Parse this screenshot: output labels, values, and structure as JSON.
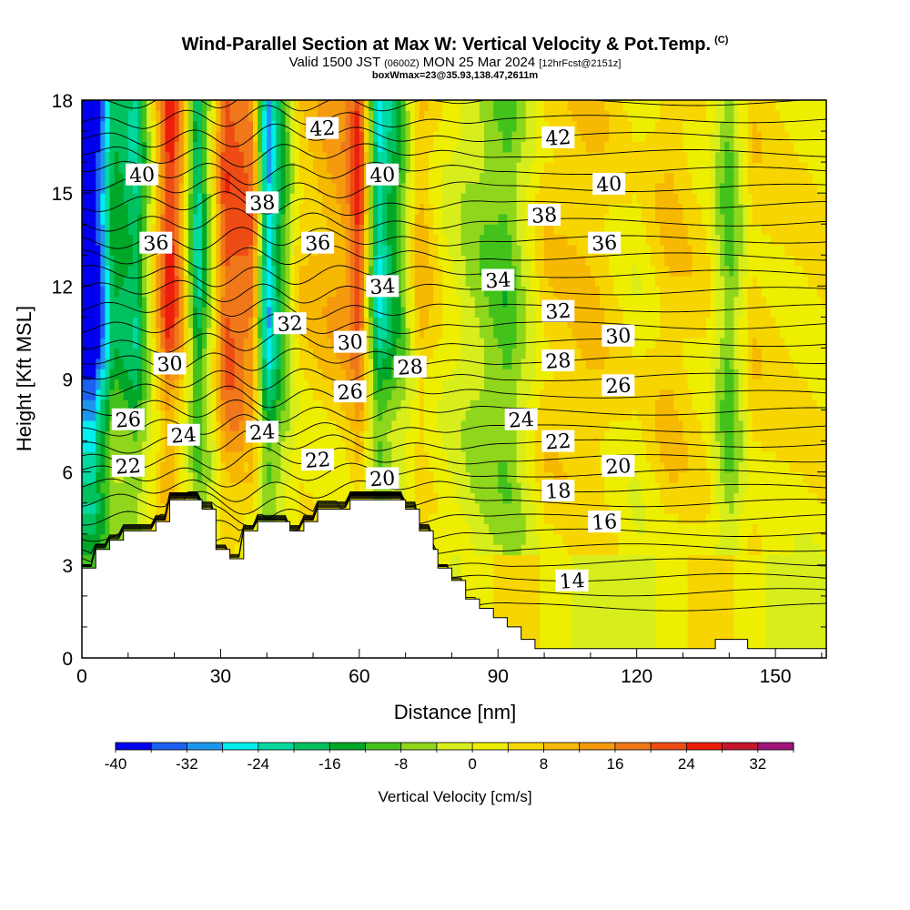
{
  "header": {
    "title": "Wind-Parallel Section at Max W: Vertical Velocity & Pot.Temp.",
    "copyright": "(C)",
    "valid_prefix": "Valid 1500 JST",
    "valid_utc": "(0600Z)",
    "valid_date": "MON 25 Mar 2024",
    "forecast": "[12hrFcst@2151z]",
    "box_info": "boxWmax=23@35.93,138.47,2611m"
  },
  "chart_data": {
    "type": "heatmap",
    "title": "Wind-Parallel Section at Max W: Vertical Velocity & Pot.Temp.",
    "xlabel": "Distance [nm]",
    "ylabel": "Height [Kft MSL]",
    "xlim": [
      0,
      161
    ],
    "ylim": [
      0,
      18
    ],
    "x_ticks": [
      0,
      30,
      60,
      90,
      120,
      150
    ],
    "y_ticks": [
      0,
      3,
      6,
      9,
      12,
      15,
      18
    ],
    "colorbar": {
      "label": "Vertical Velocity [cm/s]",
      "ticks": [
        -40,
        -32,
        -24,
        -16,
        -8,
        0,
        8,
        16,
        24,
        32
      ],
      "range": [
        -40,
        36
      ],
      "step": 4,
      "colors": [
        "#0000ee",
        "#1c60f2",
        "#1e96ee",
        "#00eeee",
        "#00d9a0",
        "#00c160",
        "#00a728",
        "#44c21c",
        "#8fd61c",
        "#d7ee1c",
        "#eeee00",
        "#f6d500",
        "#f6b800",
        "#f59a0e",
        "#f0781a",
        "#ee4c14",
        "#ee1e0c",
        "#c6162c",
        "#a0147a"
      ]
    },
    "terrain": [
      [
        0,
        2.9
      ],
      [
        3,
        2.9
      ],
      [
        3,
        3.5
      ],
      [
        6,
        3.5
      ],
      [
        6,
        3.8
      ],
      [
        9,
        3.8
      ],
      [
        9,
        4.1
      ],
      [
        16,
        4.1
      ],
      [
        16,
        4.4
      ],
      [
        19,
        4.4
      ],
      [
        19,
        5.1
      ],
      [
        26,
        5.1
      ],
      [
        26,
        4.8
      ],
      [
        29,
        4.8
      ],
      [
        29,
        3.5
      ],
      [
        32,
        3.5
      ],
      [
        32,
        3.2
      ],
      [
        35,
        3.2
      ],
      [
        35,
        4.1
      ],
      [
        38,
        4.1
      ],
      [
        38,
        4.4
      ],
      [
        45,
        4.4
      ],
      [
        45,
        4.1
      ],
      [
        48,
        4.1
      ],
      [
        48,
        4.4
      ],
      [
        51,
        4.4
      ],
      [
        51,
        4.8
      ],
      [
        58,
        4.8
      ],
      [
        58,
        5.1
      ],
      [
        70,
        5.1
      ],
      [
        70,
        4.8
      ],
      [
        73,
        4.8
      ],
      [
        73,
        4.1
      ],
      [
        76,
        4.1
      ],
      [
        76,
        3.5
      ],
      [
        77,
        3.5
      ],
      [
        77,
        2.9
      ],
      [
        80,
        2.9
      ],
      [
        80,
        2.5
      ],
      [
        83,
        2.5
      ],
      [
        83,
        1.9
      ],
      [
        86,
        1.9
      ],
      [
        86,
        1.6
      ],
      [
        89,
        1.6
      ],
      [
        89,
        1.3
      ],
      [
        92,
        1.3
      ],
      [
        92,
        1.0
      ],
      [
        95,
        1.0
      ],
      [
        95,
        0.6
      ],
      [
        98,
        0.6
      ],
      [
        98,
        0.3
      ],
      [
        137,
        0.3
      ],
      [
        137,
        0.6
      ],
      [
        144,
        0.6
      ],
      [
        144,
        0.3
      ],
      [
        161,
        0.3
      ]
    ],
    "w_field": [
      {
        "x": 3,
        "w": -40
      },
      {
        "x": 7,
        "w": -14
      },
      {
        "x": 12,
        "w": -20
      },
      {
        "x": 19,
        "w": 28
      },
      {
        "x": 22,
        "w": 10
      },
      {
        "x": 25,
        "w": -24
      },
      {
        "x": 31,
        "w": 22
      },
      {
        "x": 37,
        "w": 18
      },
      {
        "x": 40,
        "w": -30
      },
      {
        "x": 47,
        "w": 6
      },
      {
        "x": 52,
        "w": 10
      },
      {
        "x": 57,
        "w": 14
      },
      {
        "x": 60,
        "w": 26
      },
      {
        "x": 64,
        "w": -26
      },
      {
        "x": 69,
        "w": -10
      },
      {
        "x": 73,
        "w": 10
      },
      {
        "x": 78,
        "w": 2
      },
      {
        "x": 84,
        "w": -4
      },
      {
        "x": 92,
        "w": -10
      },
      {
        "x": 100,
        "w": 6
      },
      {
        "x": 110,
        "w": 8
      },
      {
        "x": 120,
        "w": 2
      },
      {
        "x": 127,
        "w": 8
      },
      {
        "x": 135,
        "w": 4
      },
      {
        "x": 140,
        "w": -10
      },
      {
        "x": 145,
        "w": 6
      },
      {
        "x": 155,
        "w": 4
      }
    ],
    "theta_levels": [
      12,
      13,
      14,
      15,
      16,
      17,
      18,
      19,
      20,
      21,
      22,
      23,
      24,
      25,
      26,
      27,
      28,
      29,
      30,
      31,
      32,
      33,
      34,
      35,
      36,
      37,
      38,
      39,
      40,
      41,
      42,
      43,
      44
    ],
    "theta_labels": [
      {
        "text": "42",
        "x": 52,
        "y": 17.1
      },
      {
        "text": "40",
        "x": 13,
        "y": 15.6
      },
      {
        "text": "38",
        "x": 39,
        "y": 14.7
      },
      {
        "text": "40",
        "x": 65,
        "y": 15.6
      },
      {
        "text": "42",
        "x": 103,
        "y": 16.8
      },
      {
        "text": "40",
        "x": 114,
        "y": 15.3
      },
      {
        "text": "38",
        "x": 100,
        "y": 14.3
      },
      {
        "text": "36",
        "x": 16,
        "y": 13.4
      },
      {
        "text": "36",
        "x": 51,
        "y": 13.4
      },
      {
        "text": "36",
        "x": 113,
        "y": 13.4
      },
      {
        "text": "34",
        "x": 65,
        "y": 12.0
      },
      {
        "text": "34",
        "x": 90,
        "y": 12.2
      },
      {
        "text": "32",
        "x": 45,
        "y": 10.8
      },
      {
        "text": "32",
        "x": 103,
        "y": 11.2
      },
      {
        "text": "30",
        "x": 58,
        "y": 10.2
      },
      {
        "text": "30",
        "x": 116,
        "y": 10.4
      },
      {
        "text": "30",
        "x": 19,
        "y": 9.5
      },
      {
        "text": "28",
        "x": 71,
        "y": 9.4
      },
      {
        "text": "28",
        "x": 103,
        "y": 9.6
      },
      {
        "text": "26",
        "x": 58,
        "y": 8.6
      },
      {
        "text": "26",
        "x": 116,
        "y": 8.8
      },
      {
        "text": "26",
        "x": 10,
        "y": 7.7
      },
      {
        "text": "24",
        "x": 95,
        "y": 7.7
      },
      {
        "text": "24",
        "x": 22,
        "y": 7.2
      },
      {
        "text": "24",
        "x": 39,
        "y": 7.3
      },
      {
        "text": "22",
        "x": 103,
        "y": 7.0
      },
      {
        "text": "22",
        "x": 51,
        "y": 6.4
      },
      {
        "text": "22",
        "x": 10,
        "y": 6.2
      },
      {
        "text": "20",
        "x": 65,
        "y": 5.8
      },
      {
        "text": "20",
        "x": 116,
        "y": 6.2
      },
      {
        "text": "18",
        "x": 103,
        "y": 5.4
      },
      {
        "text": "16",
        "x": 113,
        "y": 4.4
      },
      {
        "text": "14",
        "x": 106,
        "y": 2.5
      }
    ]
  }
}
